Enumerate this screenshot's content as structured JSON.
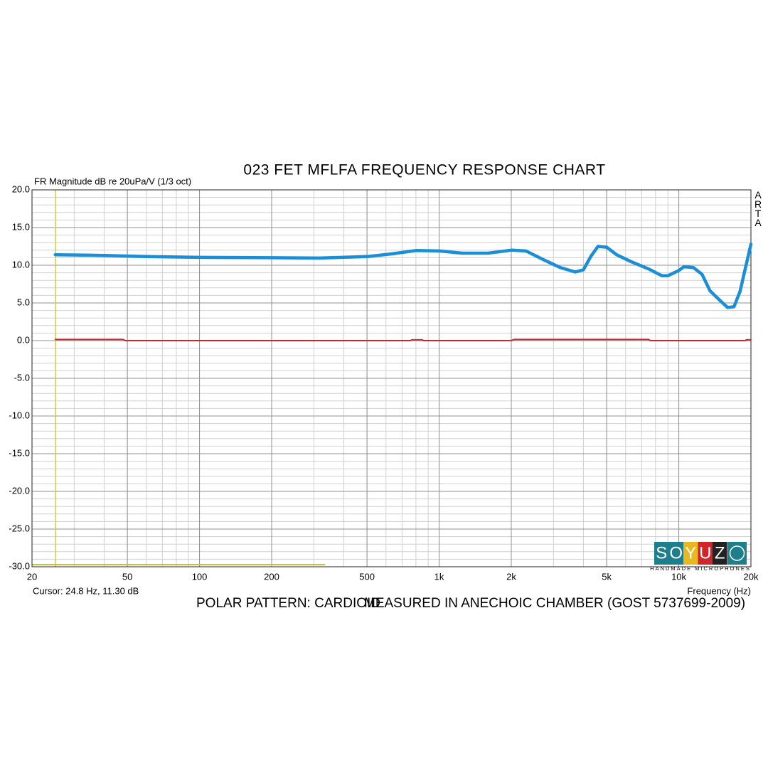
{
  "chart_data": {
    "type": "line",
    "title": "023 FET MFLFA FREQUENCY RESPONSE CHART",
    "y_label": "FR Magnitude dB re 20uPa/V (1/3 oct)",
    "x_label": "Frequency (Hz)",
    "cursor_text": "Cursor: 24.8 Hz, 11.30 dB",
    "brand": "ARTA",
    "footer": [
      "POLAR PATTERN: CARDIOID",
      "MEASURED IN ANECHOIC CHAMBER (GOST 5737699-2009)"
    ],
    "logo": {
      "letters": [
        "S",
        "O",
        "Y",
        "U",
        "Z"
      ],
      "tagline": "HANDMADE MICROPHONES"
    },
    "x_log": true,
    "grid": true,
    "xlim": [
      20,
      20000
    ],
    "ylim": [
      -30,
      20
    ],
    "xticks": [
      20,
      50,
      100,
      200,
      500,
      {
        "value": 1000,
        "label": "1k"
      },
      {
        "value": 2000,
        "label": "2k"
      },
      {
        "value": 5000,
        "label": "5k"
      },
      {
        "value": 10000,
        "label": "10k"
      },
      {
        "value": 20000,
        "label": "20k"
      }
    ],
    "yticks": [
      {
        "value": -30,
        "label": "-30.0"
      },
      {
        "value": -25,
        "label": "-25.0"
      },
      {
        "value": -20,
        "label": "-20.0"
      },
      {
        "value": -15,
        "label": "-15.0"
      },
      {
        "value": -10,
        "label": "-10.0"
      },
      {
        "value": -5,
        "label": "-5.0"
      },
      {
        "value": 0,
        "label": "0.0"
      },
      {
        "value": 5,
        "label": "5.0"
      },
      {
        "value": 10,
        "label": "10.0"
      },
      {
        "value": 15,
        "label": "15.0"
      },
      {
        "value": 20,
        "label": "20.0"
      }
    ],
    "series": [
      {
        "color": "#1a8fd8",
        "x": [
          25,
          40,
          60,
          100,
          200,
          315,
          500,
          630,
          800,
          1000,
          1250,
          1600,
          2000,
          2300,
          2700,
          3200,
          3700,
          4000,
          4300,
          4600,
          5000,
          5500,
          6300,
          7500,
          8500,
          9000,
          10000,
          10500,
          11500,
          12500,
          13500,
          15000,
          16000,
          17000,
          18000,
          20000
        ],
        "values": [
          11.4,
          11.3,
          11.15,
          11.05,
          11.0,
          10.95,
          11.15,
          11.5,
          11.95,
          11.9,
          11.6,
          11.6,
          12.0,
          11.9,
          10.8,
          9.7,
          9.1,
          9.4,
          11.2,
          12.5,
          12.4,
          11.4,
          10.5,
          9.5,
          8.6,
          8.6,
          9.3,
          9.8,
          9.7,
          8.8,
          6.6,
          5.2,
          4.4,
          4.5,
          6.5,
          12.8
        ]
      },
      {
        "color": "#c8282d",
        "x": [
          25,
          48,
          49,
          760,
          770,
          850,
          860,
          2000,
          2050,
          7500,
          7600,
          19000,
          19100,
          20000
        ],
        "values": [
          0.15,
          0.15,
          0,
          0,
          0.1,
          0.1,
          0,
          0,
          0.15,
          0.15,
          0,
          0,
          0.1,
          0.1
        ]
      }
    ]
  }
}
